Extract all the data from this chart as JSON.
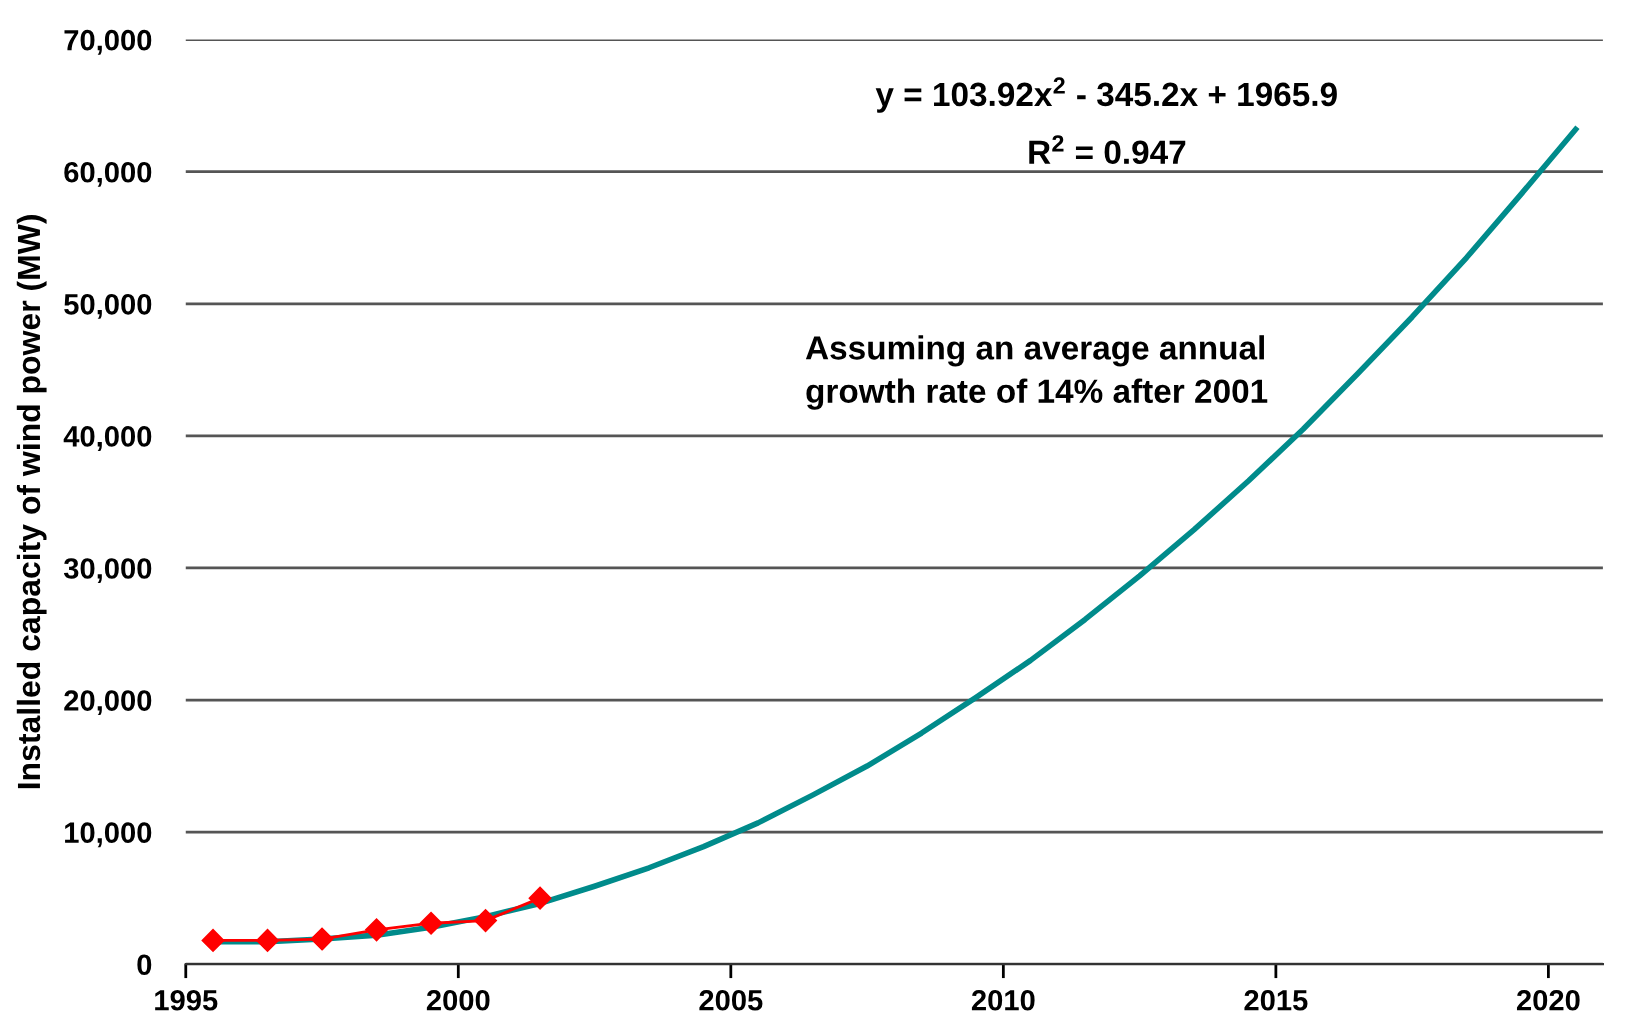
{
  "chart_data": {
    "type": "line",
    "ylabel": "Installed capacity of wind power (MW)",
    "annotations": [
      "y = 103.92x$^{2}$ - 345.2x + 1965.9",
      "R$^{2}$ = 0.947",
      "Assuming an average annual\ngrowth rate of 14% after 2001"
    ],
    "series": [
      {
        "color": "#ff0000",
        "marker": "diamond",
        "x": [
          1995.5,
          1996.5,
          1997.5,
          1998.5,
          1999.5,
          2000.5,
          2001.5
        ],
        "values": [
          1800,
          1800,
          1900,
          2600,
          3100,
          3300,
          5000
        ]
      },
      {
        "color": "#008b8b",
        "marker": "none",
        "x": [
          1995.5,
          1996.5,
          1997.5,
          1998.5,
          1999.5,
          2000.5,
          2001.5,
          2002.5,
          2003.5,
          2004.5,
          2005.5,
          2006.5,
          2007.5,
          2008.5,
          2009.5,
          2010.5,
          2011.5,
          2012.5,
          2013.5,
          2014.5,
          2015.5,
          2016.5,
          2017.5,
          2018.5,
          2019.5,
          2020.5
        ],
        "values": [
          1700,
          1700,
          1900,
          2200,
          2800,
          3600,
          4600,
          5900,
          7300,
          8900,
          10700,
          12800,
          15000,
          17500,
          20200,
          23000,
          26100,
          29400,
          32900,
          36600,
          40500,
          44700,
          49000,
          53500,
          58300,
          63200
        ]
      }
    ],
    "xlim": [
      1995,
      2021
    ],
    "xticks": [
      1995,
      2000,
      2005,
      2010,
      2015,
      2020
    ],
    "ylim": [
      0,
      70000
    ],
    "yticks": [
      0,
      {
        "value": 10000,
        "label": "10,000"
      },
      {
        "value": 20000,
        "label": "20,000"
      },
      {
        "value": 30000,
        "label": "30,000"
      },
      {
        "value": 40000,
        "label": "40,000"
      },
      {
        "value": 50000,
        "label": "50,000"
      },
      {
        "value": 60000,
        "label": "60,000"
      },
      {
        "value": 70000,
        "label": "70,000"
      }
    ],
    "grid": "y",
    "line_style": "solid"
  }
}
